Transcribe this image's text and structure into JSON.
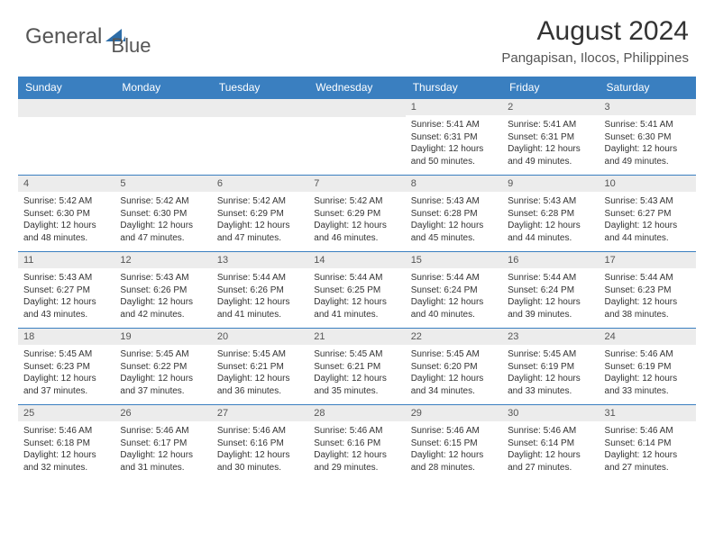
{
  "logo": {
    "text1": "General",
    "text2": "Blue"
  },
  "title": "August 2024",
  "location": "Pangapisan, Ilocos, Philippines",
  "colors": {
    "header_bg": "#3a7fc0",
    "daynum_bg": "#ececec",
    "text": "#333333",
    "row_border": "#3a7fc0"
  },
  "day_headers": [
    "Sunday",
    "Monday",
    "Tuesday",
    "Wednesday",
    "Thursday",
    "Friday",
    "Saturday"
  ],
  "weeks": [
    [
      {
        "num": "",
        "sunrise": "",
        "sunset": "",
        "daylight": ""
      },
      {
        "num": "",
        "sunrise": "",
        "sunset": "",
        "daylight": ""
      },
      {
        "num": "",
        "sunrise": "",
        "sunset": "",
        "daylight": ""
      },
      {
        "num": "",
        "sunrise": "",
        "sunset": "",
        "daylight": ""
      },
      {
        "num": "1",
        "sunrise": "Sunrise: 5:41 AM",
        "sunset": "Sunset: 6:31 PM",
        "daylight": "Daylight: 12 hours and 50 minutes."
      },
      {
        "num": "2",
        "sunrise": "Sunrise: 5:41 AM",
        "sunset": "Sunset: 6:31 PM",
        "daylight": "Daylight: 12 hours and 49 minutes."
      },
      {
        "num": "3",
        "sunrise": "Sunrise: 5:41 AM",
        "sunset": "Sunset: 6:30 PM",
        "daylight": "Daylight: 12 hours and 49 minutes."
      }
    ],
    [
      {
        "num": "4",
        "sunrise": "Sunrise: 5:42 AM",
        "sunset": "Sunset: 6:30 PM",
        "daylight": "Daylight: 12 hours and 48 minutes."
      },
      {
        "num": "5",
        "sunrise": "Sunrise: 5:42 AM",
        "sunset": "Sunset: 6:30 PM",
        "daylight": "Daylight: 12 hours and 47 minutes."
      },
      {
        "num": "6",
        "sunrise": "Sunrise: 5:42 AM",
        "sunset": "Sunset: 6:29 PM",
        "daylight": "Daylight: 12 hours and 47 minutes."
      },
      {
        "num": "7",
        "sunrise": "Sunrise: 5:42 AM",
        "sunset": "Sunset: 6:29 PM",
        "daylight": "Daylight: 12 hours and 46 minutes."
      },
      {
        "num": "8",
        "sunrise": "Sunrise: 5:43 AM",
        "sunset": "Sunset: 6:28 PM",
        "daylight": "Daylight: 12 hours and 45 minutes."
      },
      {
        "num": "9",
        "sunrise": "Sunrise: 5:43 AM",
        "sunset": "Sunset: 6:28 PM",
        "daylight": "Daylight: 12 hours and 44 minutes."
      },
      {
        "num": "10",
        "sunrise": "Sunrise: 5:43 AM",
        "sunset": "Sunset: 6:27 PM",
        "daylight": "Daylight: 12 hours and 44 minutes."
      }
    ],
    [
      {
        "num": "11",
        "sunrise": "Sunrise: 5:43 AM",
        "sunset": "Sunset: 6:27 PM",
        "daylight": "Daylight: 12 hours and 43 minutes."
      },
      {
        "num": "12",
        "sunrise": "Sunrise: 5:43 AM",
        "sunset": "Sunset: 6:26 PM",
        "daylight": "Daylight: 12 hours and 42 minutes."
      },
      {
        "num": "13",
        "sunrise": "Sunrise: 5:44 AM",
        "sunset": "Sunset: 6:26 PM",
        "daylight": "Daylight: 12 hours and 41 minutes."
      },
      {
        "num": "14",
        "sunrise": "Sunrise: 5:44 AM",
        "sunset": "Sunset: 6:25 PM",
        "daylight": "Daylight: 12 hours and 41 minutes."
      },
      {
        "num": "15",
        "sunrise": "Sunrise: 5:44 AM",
        "sunset": "Sunset: 6:24 PM",
        "daylight": "Daylight: 12 hours and 40 minutes."
      },
      {
        "num": "16",
        "sunrise": "Sunrise: 5:44 AM",
        "sunset": "Sunset: 6:24 PM",
        "daylight": "Daylight: 12 hours and 39 minutes."
      },
      {
        "num": "17",
        "sunrise": "Sunrise: 5:44 AM",
        "sunset": "Sunset: 6:23 PM",
        "daylight": "Daylight: 12 hours and 38 minutes."
      }
    ],
    [
      {
        "num": "18",
        "sunrise": "Sunrise: 5:45 AM",
        "sunset": "Sunset: 6:23 PM",
        "daylight": "Daylight: 12 hours and 37 minutes."
      },
      {
        "num": "19",
        "sunrise": "Sunrise: 5:45 AM",
        "sunset": "Sunset: 6:22 PM",
        "daylight": "Daylight: 12 hours and 37 minutes."
      },
      {
        "num": "20",
        "sunrise": "Sunrise: 5:45 AM",
        "sunset": "Sunset: 6:21 PM",
        "daylight": "Daylight: 12 hours and 36 minutes."
      },
      {
        "num": "21",
        "sunrise": "Sunrise: 5:45 AM",
        "sunset": "Sunset: 6:21 PM",
        "daylight": "Daylight: 12 hours and 35 minutes."
      },
      {
        "num": "22",
        "sunrise": "Sunrise: 5:45 AM",
        "sunset": "Sunset: 6:20 PM",
        "daylight": "Daylight: 12 hours and 34 minutes."
      },
      {
        "num": "23",
        "sunrise": "Sunrise: 5:45 AM",
        "sunset": "Sunset: 6:19 PM",
        "daylight": "Daylight: 12 hours and 33 minutes."
      },
      {
        "num": "24",
        "sunrise": "Sunrise: 5:46 AM",
        "sunset": "Sunset: 6:19 PM",
        "daylight": "Daylight: 12 hours and 33 minutes."
      }
    ],
    [
      {
        "num": "25",
        "sunrise": "Sunrise: 5:46 AM",
        "sunset": "Sunset: 6:18 PM",
        "daylight": "Daylight: 12 hours and 32 minutes."
      },
      {
        "num": "26",
        "sunrise": "Sunrise: 5:46 AM",
        "sunset": "Sunset: 6:17 PM",
        "daylight": "Daylight: 12 hours and 31 minutes."
      },
      {
        "num": "27",
        "sunrise": "Sunrise: 5:46 AM",
        "sunset": "Sunset: 6:16 PM",
        "daylight": "Daylight: 12 hours and 30 minutes."
      },
      {
        "num": "28",
        "sunrise": "Sunrise: 5:46 AM",
        "sunset": "Sunset: 6:16 PM",
        "daylight": "Daylight: 12 hours and 29 minutes."
      },
      {
        "num": "29",
        "sunrise": "Sunrise: 5:46 AM",
        "sunset": "Sunset: 6:15 PM",
        "daylight": "Daylight: 12 hours and 28 minutes."
      },
      {
        "num": "30",
        "sunrise": "Sunrise: 5:46 AM",
        "sunset": "Sunset: 6:14 PM",
        "daylight": "Daylight: 12 hours and 27 minutes."
      },
      {
        "num": "31",
        "sunrise": "Sunrise: 5:46 AM",
        "sunset": "Sunset: 6:14 PM",
        "daylight": "Daylight: 12 hours and 27 minutes."
      }
    ]
  ]
}
